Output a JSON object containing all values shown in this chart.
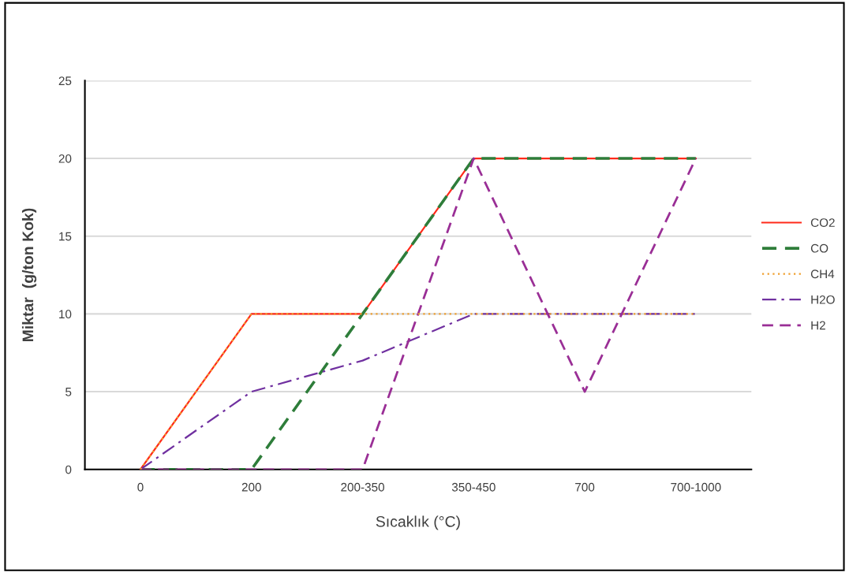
{
  "chart_data": {
    "type": "line",
    "xlabel": "Sıcaklık (°C)",
    "ylabel": "Miktar  (g/ton Kok)",
    "categories": [
      "0",
      "200",
      "200-350",
      "350-450",
      "700",
      "700-1000"
    ],
    "series": [
      {
        "name": "CO2",
        "color": "#ff2a1a",
        "line_style": "solid",
        "values": [
          0,
          10,
          10,
          20,
          20,
          20
        ]
      },
      {
        "name": "CO",
        "color": "#2e7d3a",
        "line_style": "dashed",
        "values": [
          0,
          0,
          10,
          20,
          20,
          20
        ]
      },
      {
        "name": "CH4",
        "color": "#f0a030",
        "line_style": "dotted",
        "values": [
          0,
          10,
          10,
          10,
          10,
          10
        ]
      },
      {
        "name": "H2O",
        "color": "#7030a0",
        "line_style": "dashdot",
        "values": [
          0,
          5,
          7,
          10,
          10,
          10
        ]
      },
      {
        "name": "H2",
        "color": "#9a2f96",
        "line_style": "dashed",
        "values": [
          0,
          0,
          0,
          20,
          5,
          20
        ]
      }
    ],
    "ylim": [
      0,
      25
    ],
    "yticks": [
      0,
      5,
      10,
      15,
      20,
      25
    ],
    "grid": "y",
    "legend": "right",
    "marker": "none"
  }
}
